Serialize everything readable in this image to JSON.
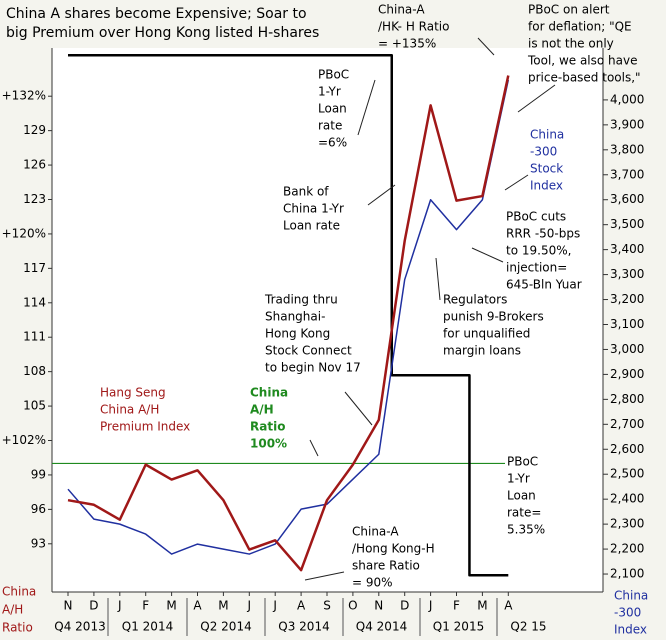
{
  "chart_data": {
    "type": "line",
    "title": [
      "China A shares become Expensive; Soar to",
      "big Premium over Hong Kong listed H-shares"
    ],
    "categories": [
      "N",
      "D",
      "J",
      "F",
      "M",
      "A",
      "M",
      "J",
      "J",
      "A",
      "S",
      "O",
      "N",
      "D",
      "J",
      "F",
      "M",
      "A"
    ],
    "quarters": [
      "Q4 2013",
      "Q1 2014",
      "Q2 2014",
      "Q3 2014",
      "Q4 2014",
      "Q1 2015",
      "Q2 15"
    ],
    "y_label": [
      "China",
      "A/H",
      "Ratio"
    ],
    "y2_label": [
      "China",
      "-300",
      "Index"
    ],
    "ylim": [
      88.8,
      136.2
    ],
    "yticks": [
      {
        "value": 132,
        "label": "+132%"
      },
      129,
      126,
      123,
      {
        "value": 120,
        "label": "+120%"
      },
      117,
      114,
      111,
      108,
      105,
      {
        "value": 102,
        "label": "+102%"
      },
      99,
      96,
      93
    ],
    "y2lim": [
      2028,
      4208
    ],
    "y2ticks": [
      {
        "value": 4000,
        "label": "4,000"
      },
      {
        "value": 3900,
        "label": "3,900"
      },
      {
        "value": 3800,
        "label": "3,800"
      },
      {
        "value": 3700,
        "label": "3,700"
      },
      {
        "value": 3600,
        "label": "3,600"
      },
      {
        "value": 3500,
        "label": "3,500"
      },
      {
        "value": 3400,
        "label": "3,400"
      },
      {
        "value": 3300,
        "label": "3,300"
      },
      {
        "value": 3200,
        "label": "3,200"
      },
      {
        "value": 3100,
        "label": "3,100"
      },
      {
        "value": 3000,
        "label": "3,000"
      },
      {
        "value": 2900,
        "label": "2,900"
      },
      {
        "value": 2800,
        "label": "2,800"
      },
      {
        "value": 2700,
        "label": "2,700"
      },
      {
        "value": 2600,
        "label": "2,600"
      },
      {
        "value": 2500,
        "label": "2,500"
      },
      {
        "value": 2400,
        "label": "2,400"
      },
      {
        "value": 2300,
        "label": "2,300"
      },
      {
        "value": 2200,
        "label": "2,200"
      },
      {
        "value": 2100,
        "label": "2,100"
      }
    ],
    "y3lim": [
      5.329,
      6.009
    ],
    "series": [
      {
        "color": "#a01818",
        "axis": "y",
        "values": [
          96.8,
          96.4,
          95.1,
          99.9,
          98.6,
          99.4,
          96.8,
          92.5,
          93.3,
          90.7,
          96.8,
          99.9,
          103.8,
          119.4,
          131.2,
          122.9,
          123.3,
          133.8
        ]
      },
      {
        "color": "#2030a0",
        "axis": "y2",
        "values": [
          2440,
          2320,
          2300,
          2260,
          2180,
          2220,
          2200,
          2180,
          2220,
          2360,
          2380,
          2480,
          2580,
          3280,
          3600,
          3480,
          3600,
          4080
        ]
      },
      {
        "color": "#000000",
        "axis": "y3",
        "step": true,
        "values": [
          6,
          6,
          6,
          6,
          6,
          6,
          6,
          6,
          6,
          6,
          6,
          6,
          6,
          5.6,
          5.6,
          5.6,
          5.35,
          5.35
        ]
      }
    ],
    "reference_line": {
      "value": 100,
      "color": "#1f8a1f"
    },
    "annotations": [
      {
        "lines": [
          "PBoC",
          "1-Yr",
          "Loan",
          "rate",
          "=6%"
        ],
        "color": "#000000"
      },
      {
        "lines": [
          "Bank of",
          "China 1-Yr",
          "Loan rate"
        ],
        "color": "#000000"
      },
      {
        "lines": [
          "Trading thru",
          "Shanghai-",
          "Hong Kong",
          "Stock Connect",
          "to begin Nov 17"
        ],
        "color": "#000000"
      },
      {
        "lines": [
          "Hang Seng",
          "China A/H",
          "Premium Index"
        ],
        "color": "#a01818"
      },
      {
        "lines": [
          "China",
          "A/H",
          "Ratio",
          "100%"
        ],
        "color": "#1f8a1f"
      },
      {
        "lines": [
          "China-A",
          "/Hong Kong-H",
          "share Ratio",
          "= 90%"
        ],
        "color": "#000000"
      },
      {
        "lines": [
          "China-A",
          "/HK- H Ratio",
          "= +135%"
        ],
        "color": "#000000"
      },
      {
        "lines": [
          "PBoC on alert",
          "for deflation; \"QE",
          "is not the only",
          "Tool, we also have",
          "price-based tools,\""
        ],
        "color": "#000000"
      },
      {
        "lines": [
          "China",
          "-300",
          "Stock",
          "Index"
        ],
        "color": "#2030a0"
      },
      {
        "lines": [
          "PBoC cuts",
          "RRR -50-bps",
          "to 19.50%,",
          "injection=",
          "645-Bln Yuar"
        ],
        "color": "#000000"
      },
      {
        "lines": [
          "Regulators",
          "punish 9-Brokers",
          "for unqualified",
          "margin loans"
        ],
        "color": "#000000"
      },
      {
        "lines": [
          "PBoC",
          "1-Yr",
          "Loan",
          "rate=",
          "5.35%"
        ],
        "color": "#000000"
      }
    ]
  }
}
